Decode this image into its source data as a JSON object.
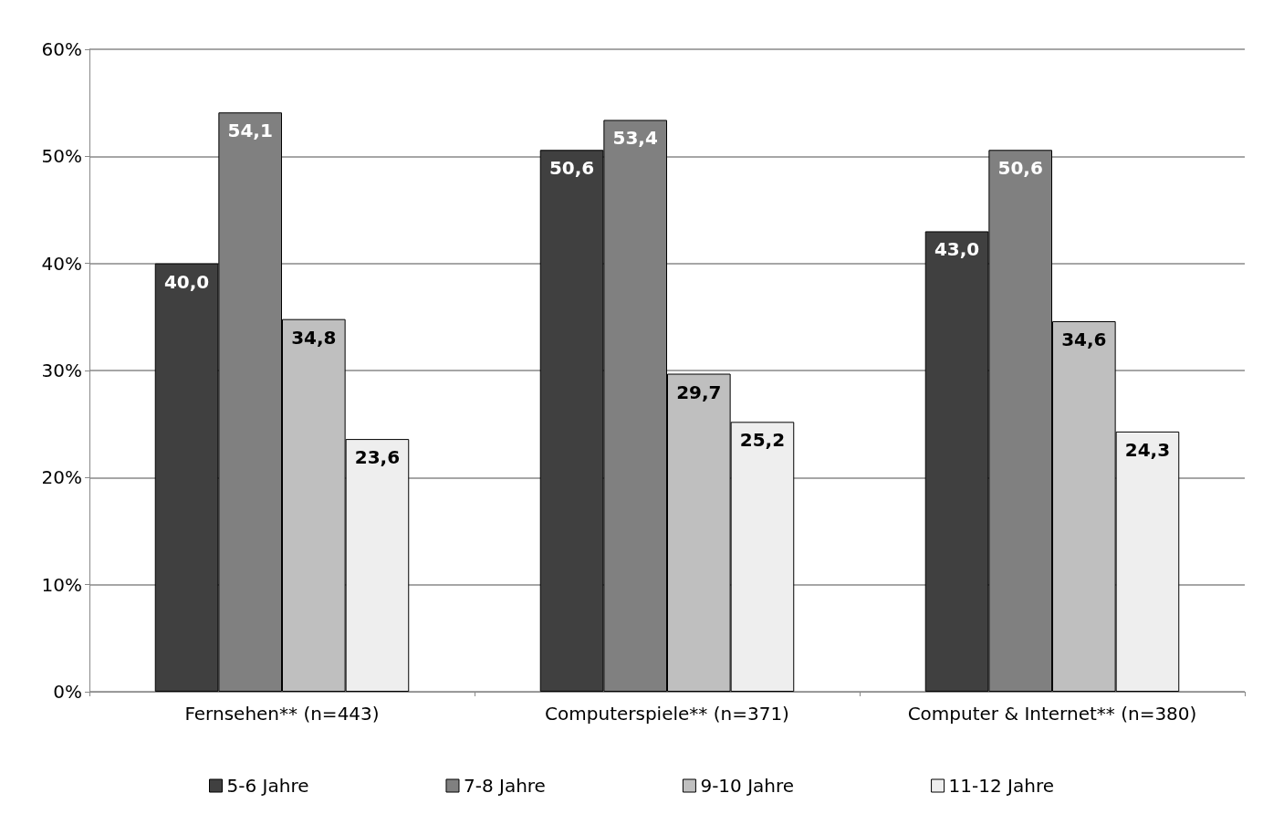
{
  "chart_data": {
    "type": "bar",
    "categories": [
      "Fernsehen** (n=443)",
      "Computerspiele** (n=371)",
      "Computer & Internet** (n=380)"
    ],
    "series": [
      {
        "name": "5-6 Jahre",
        "color": "#404040",
        "values": [
          40.0,
          50.6,
          43.0
        ],
        "value_labels": [
          "40,0",
          "50,6",
          "43,0"
        ]
      },
      {
        "name": "7-8 Jahre",
        "color": "#808080",
        "values": [
          54.1,
          53.4,
          50.6
        ],
        "value_labels": [
          "54,1",
          "53,4",
          "50,6"
        ]
      },
      {
        "name": "9-10 Jahre",
        "color": "#bfbfbf",
        "values": [
          34.8,
          29.7,
          34.6
        ],
        "value_labels": [
          "34,8",
          "29,7",
          "34,6"
        ]
      },
      {
        "name": "11-12 Jahre",
        "color": "#eeeeee",
        "values": [
          23.6,
          25.2,
          24.3
        ],
        "value_labels": [
          "23,6",
          "25,2",
          "24,3"
        ]
      }
    ],
    "ylim": [
      0,
      60
    ],
    "yticks": [
      {
        "value": 0,
        "label": "0%"
      },
      {
        "value": 10,
        "label": "10%"
      },
      {
        "value": 20,
        "label": "20%"
      },
      {
        "value": 30,
        "label": "30%"
      },
      {
        "value": 40,
        "label": "40%"
      },
      {
        "value": 50,
        "label": "50%"
      },
      {
        "value": 60,
        "label": "60%"
      }
    ],
    "grid": "y",
    "legend": "bottom"
  }
}
